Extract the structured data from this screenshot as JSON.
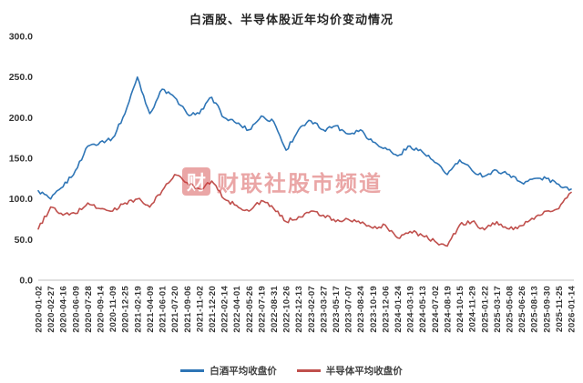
{
  "title": "白酒股、半导体股近年均价变动情况",
  "watermark": {
    "logo_char": "财",
    "text": "财联社股市频道"
  },
  "colors": {
    "baijiu_blue": "#2E75B6",
    "semiconductor_red": "#C0504D",
    "watermark_red": "#D23C3C",
    "axis_gray": "#BFBFBF"
  },
  "chart_data": {
    "type": "line",
    "title": "白酒股、半导体股近年均价变动情况",
    "categories": [
      "2020-01-02",
      "2020-02-27",
      "2020-04-16",
      "2020-06-09",
      "2020-07-28",
      "2020-09-14",
      "2020-11-09",
      "2020-12-25",
      "2021-02-19",
      "2021-04-09",
      "2021-06-01",
      "2021-07-20",
      "2021-09-06",
      "2021-11-02",
      "2021-12-20",
      "2022-02-14",
      "2022-04-01",
      "2022-05-26",
      "2022-07-19",
      "2022-08-31",
      "2022-10-26",
      "2022-12-13",
      "2023-02-07",
      "2023-03-27",
      "2023-05-17",
      "2023-07-07",
      "2023-08-24",
      "2023-10-19",
      "2023-12-06",
      "2024-01-24",
      "2024-03-19",
      "2024-05-13",
      "2024-07-02",
      "2024-08-19",
      "2024-10-15",
      "2024-11-29",
      "2025-01-22",
      "2025-03-17",
      "2025-05-08",
      "2025-06-26",
      "2025-08-13",
      "2025-09-30",
      "2025-11-25",
      "2026-01-14"
    ],
    "series": [
      {
        "name": "白酒平均收盘价",
        "color": "#2E75B6",
        "values": [
          110,
          100,
          115,
          135,
          165,
          170,
          175,
          205,
          250,
          205,
          235,
          225,
          205,
          205,
          225,
          200,
          193,
          185,
          202,
          195,
          160,
          185,
          196,
          185,
          190,
          180,
          185,
          170,
          163,
          153,
          165,
          158,
          145,
          130,
          148,
          135,
          128,
          135,
          130,
          120,
          125,
          125,
          118,
          112
        ]
      },
      {
        "name": "半导体平均收盘价",
        "color": "#C0504D",
        "values": [
          63,
          90,
          80,
          82,
          95,
          88,
          85,
          95,
          100,
          90,
          110,
          130,
          120,
          112,
          122,
          100,
          92,
          85,
          98,
          88,
          72,
          78,
          85,
          80,
          72,
          75,
          70,
          64,
          68,
          52,
          60,
          55,
          48,
          42,
          68,
          72,
          62,
          72,
          63,
          67,
          75,
          85,
          88,
          108
        ]
      }
    ],
    "ylim": [
      0,
      300
    ],
    "y_ticks": [
      0,
      50,
      100,
      150,
      200,
      250,
      300
    ],
    "grid": false,
    "legend_position": "bottom"
  }
}
